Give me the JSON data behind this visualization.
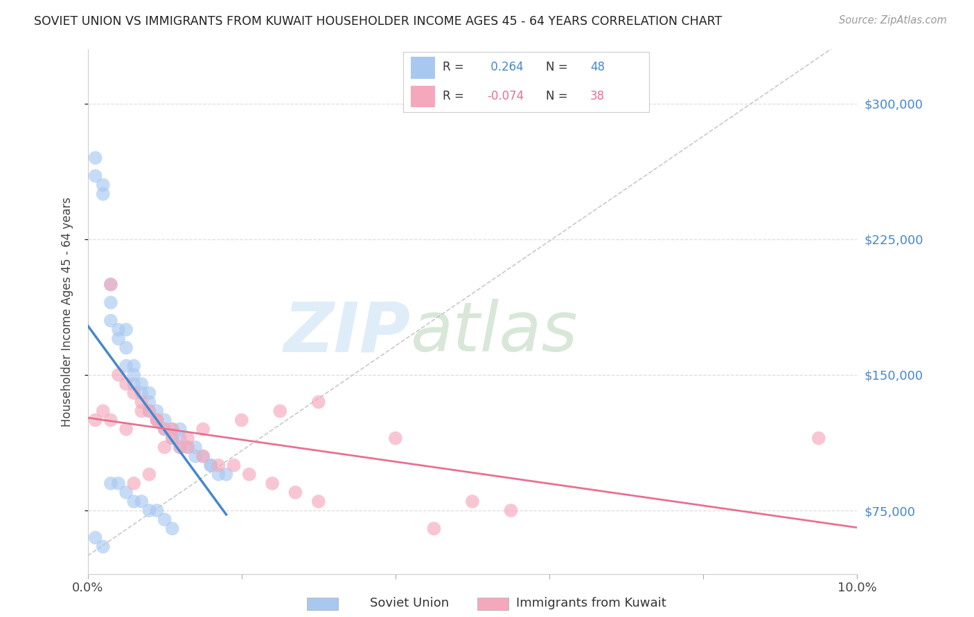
{
  "title": "SOVIET UNION VS IMMIGRANTS FROM KUWAIT HOUSEHOLDER INCOME AGES 45 - 64 YEARS CORRELATION CHART",
  "source": "Source: ZipAtlas.com",
  "ylabel": "Householder Income Ages 45 - 64 years",
  "xlim": [
    0.0,
    0.1
  ],
  "ylim": [
    40000,
    330000
  ],
  "ytick_vals": [
    75000,
    150000,
    225000,
    300000
  ],
  "ytick_labels": [
    "$75,000",
    "$150,000",
    "$225,000",
    "$300,000"
  ],
  "xtick_vals": [
    0.0,
    0.02,
    0.04,
    0.06,
    0.08,
    0.1
  ],
  "xtick_labels": [
    "0.0%",
    "",
    "",
    "",
    "",
    "10.0%"
  ],
  "blue_color": "#A8C8F0",
  "pink_color": "#F5A8BC",
  "blue_line_color": "#4488CC",
  "pink_line_color": "#E87090",
  "blue_R": 0.264,
  "blue_N": 48,
  "pink_R": -0.074,
  "pink_N": 38,
  "watermark_zip": "ZIP",
  "watermark_atlas": "atlas",
  "background_color": "#ffffff",
  "grid_color": "#dddddd",
  "blue_x": [
    0.001,
    0.001,
    0.002,
    0.002,
    0.003,
    0.003,
    0.003,
    0.004,
    0.004,
    0.005,
    0.005,
    0.005,
    0.006,
    0.006,
    0.006,
    0.007,
    0.007,
    0.008,
    0.008,
    0.008,
    0.009,
    0.009,
    0.01,
    0.01,
    0.011,
    0.011,
    0.012,
    0.012,
    0.013,
    0.014,
    0.015,
    0.016,
    0.017,
    0.018,
    0.003,
    0.004,
    0.005,
    0.006,
    0.007,
    0.008,
    0.009,
    0.01,
    0.011,
    0.001,
    0.002,
    0.012,
    0.014,
    0.016
  ],
  "blue_y": [
    270000,
    260000,
    255000,
    250000,
    200000,
    190000,
    180000,
    175000,
    170000,
    175000,
    165000,
    155000,
    155000,
    150000,
    145000,
    145000,
    140000,
    140000,
    135000,
    130000,
    130000,
    125000,
    125000,
    120000,
    120000,
    115000,
    115000,
    110000,
    110000,
    105000,
    105000,
    100000,
    95000,
    95000,
    90000,
    90000,
    85000,
    80000,
    80000,
    75000,
    75000,
    70000,
    65000,
    60000,
    55000,
    120000,
    110000,
    100000
  ],
  "pink_x": [
    0.001,
    0.002,
    0.003,
    0.004,
    0.005,
    0.006,
    0.007,
    0.008,
    0.009,
    0.01,
    0.011,
    0.012,
    0.013,
    0.015,
    0.017,
    0.019,
    0.021,
    0.024,
    0.027,
    0.03,
    0.003,
    0.005,
    0.007,
    0.009,
    0.011,
    0.05,
    0.055,
    0.04,
    0.03,
    0.025,
    0.02,
    0.015,
    0.013,
    0.01,
    0.008,
    0.006,
    0.095,
    0.045
  ],
  "pink_y": [
    125000,
    130000,
    200000,
    150000,
    145000,
    140000,
    135000,
    130000,
    125000,
    120000,
    115000,
    110000,
    110000,
    105000,
    100000,
    100000,
    95000,
    90000,
    85000,
    80000,
    125000,
    120000,
    130000,
    125000,
    120000,
    80000,
    75000,
    115000,
    135000,
    130000,
    125000,
    120000,
    115000,
    110000,
    95000,
    90000,
    115000,
    65000
  ]
}
